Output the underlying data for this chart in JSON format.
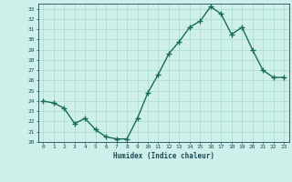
{
  "x": [
    0,
    1,
    2,
    3,
    4,
    5,
    6,
    7,
    8,
    9,
    10,
    11,
    12,
    13,
    14,
    15,
    16,
    17,
    18,
    19,
    20,
    21,
    22,
    23
  ],
  "y": [
    24.0,
    23.8,
    23.3,
    21.8,
    22.3,
    21.2,
    20.5,
    20.3,
    20.3,
    22.3,
    24.8,
    26.6,
    28.6,
    29.8,
    31.2,
    31.8,
    33.2,
    32.5,
    30.5,
    31.2,
    29.0,
    27.0,
    26.3,
    26.3
  ],
  "xlabel": "Humidex (Indice chaleur)",
  "ylim": [
    20,
    33.5
  ],
  "xlim": [
    -0.5,
    23.5
  ],
  "yticks": [
    20,
    21,
    22,
    23,
    24,
    25,
    26,
    27,
    28,
    29,
    30,
    31,
    32,
    33
  ],
  "xticks": [
    0,
    1,
    2,
    3,
    4,
    5,
    6,
    7,
    8,
    9,
    10,
    11,
    12,
    13,
    14,
    15,
    16,
    17,
    18,
    19,
    20,
    21,
    22,
    23
  ],
  "line_color": "#1a6b5a",
  "marker_color": "#1a6b5a",
  "bg_color": "#cff0ea",
  "grid_color": "#a8d8d0",
  "tick_label_color": "#1a4a55",
  "xlabel_color": "#1a4a55",
  "marker_size": 2.2,
  "line_width": 1.0
}
